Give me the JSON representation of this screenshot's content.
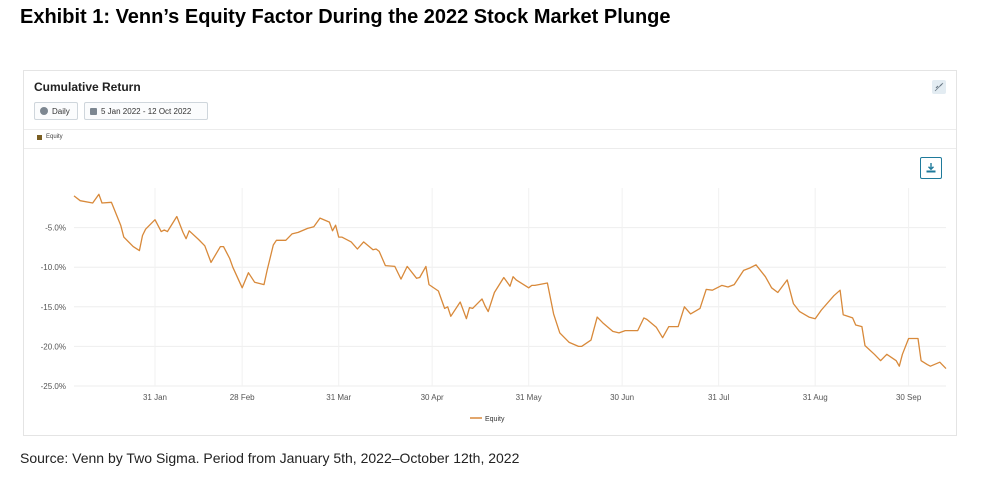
{
  "exhibit_title": "Exhibit 1: Venn’s Equity Factor During the 2022 Stock Market Plunge",
  "panel": {
    "title": "Cumulative Return",
    "frequency_label": "Daily",
    "date_range_label": "5 Jan 2022 - 12 Oct 2022",
    "legend_top_label": "Equity",
    "legend_bottom_label": "Equity"
  },
  "icons": {
    "frequency": "clock-icon",
    "date_range": "calendar-icon",
    "link": "unlink-icon",
    "download": "download-icon"
  },
  "colors": {
    "series": "#d8893a",
    "legend_top_swatch": "#7a5e22",
    "download_accent": "#1f7a9b"
  },
  "source": "Source: Venn by Two Sigma. Period from January 5th, 2022–October 12th, 2022",
  "chart_data": {
    "type": "line",
    "title": "Cumulative Return",
    "xlabel": "",
    "ylabel": "",
    "x_range": [
      "2022-01-05",
      "2022-10-12"
    ],
    "ylim": [
      -25,
      0
    ],
    "y_ticks": [
      -5,
      -10,
      -15,
      -20,
      -25
    ],
    "y_tick_labels": [
      "-5.0%",
      "-10.0%",
      "-15.0%",
      "-20.0%",
      "-25.0%"
    ],
    "x_ticks": [
      "2022-01-31",
      "2022-02-28",
      "2022-03-31",
      "2022-04-30",
      "2022-05-31",
      "2022-06-30",
      "2022-07-31",
      "2022-08-31",
      "2022-09-30"
    ],
    "x_tick_labels": [
      "31 Jan",
      "28 Feb",
      "31 Mar",
      "30 Apr",
      "31 May",
      "30 Jun",
      "31 Jul",
      "31 Aug",
      "30 Sep"
    ],
    "grid": true,
    "legend": "bottom-center",
    "series": [
      {
        "name": "Equity",
        "color": "#d8893a",
        "x": [
          "2022-01-05",
          "2022-01-07",
          "2022-01-11",
          "2022-01-13",
          "2022-01-14",
          "2022-01-17",
          "2022-01-20",
          "2022-01-21",
          "2022-01-24",
          "2022-01-26",
          "2022-01-27",
          "2022-01-28",
          "2022-01-31",
          "2022-02-02",
          "2022-02-03",
          "2022-02-04",
          "2022-02-07",
          "2022-02-09",
          "2022-02-10",
          "2022-02-11",
          "2022-02-14",
          "2022-02-16",
          "2022-02-18",
          "2022-02-21",
          "2022-02-22",
          "2022-02-24",
          "2022-02-25",
          "2022-02-28",
          "2022-03-02",
          "2022-03-04",
          "2022-03-07",
          "2022-03-08",
          "2022-03-10",
          "2022-03-11",
          "2022-03-14",
          "2022-03-16",
          "2022-03-18",
          "2022-03-21",
          "2022-03-23",
          "2022-03-25",
          "2022-03-28",
          "2022-03-29",
          "2022-03-30",
          "2022-03-31",
          "2022-04-01",
          "2022-04-04",
          "2022-04-06",
          "2022-04-08",
          "2022-04-11",
          "2022-04-12",
          "2022-04-13",
          "2022-04-15",
          "2022-04-18",
          "2022-04-20",
          "2022-04-22",
          "2022-04-25",
          "2022-04-26",
          "2022-04-28",
          "2022-04-29",
          "2022-05-02",
          "2022-05-04",
          "2022-05-05",
          "2022-05-06",
          "2022-05-09",
          "2022-05-11",
          "2022-05-12",
          "2022-05-13",
          "2022-05-16",
          "2022-05-17",
          "2022-05-18",
          "2022-05-20",
          "2022-05-23",
          "2022-05-25",
          "2022-05-26",
          "2022-05-27",
          "2022-05-31",
          "2022-06-01",
          "2022-06-02",
          "2022-06-06",
          "2022-06-08",
          "2022-06-10",
          "2022-06-13",
          "2022-06-16",
          "2022-06-17",
          "2022-06-20",
          "2022-06-22",
          "2022-06-24",
          "2022-06-27",
          "2022-06-29",
          "2022-07-01",
          "2022-07-05",
          "2022-07-07",
          "2022-07-08",
          "2022-07-11",
          "2022-07-13",
          "2022-07-15",
          "2022-07-18",
          "2022-07-20",
          "2022-07-22",
          "2022-07-25",
          "2022-07-27",
          "2022-07-29",
          "2022-08-01",
          "2022-08-03",
          "2022-08-05",
          "2022-08-08",
          "2022-08-10",
          "2022-08-12",
          "2022-08-15",
          "2022-08-17",
          "2022-08-19",
          "2022-08-22",
          "2022-08-24",
          "2022-08-26",
          "2022-08-29",
          "2022-08-31",
          "2022-09-02",
          "2022-09-06",
          "2022-09-08",
          "2022-09-09",
          "2022-09-12",
          "2022-09-13",
          "2022-09-15",
          "2022-09-16",
          "2022-09-19",
          "2022-09-21",
          "2022-09-23",
          "2022-09-26",
          "2022-09-27",
          "2022-09-28",
          "2022-09-30",
          "2022-10-03",
          "2022-10-04",
          "2022-10-06",
          "2022-10-07",
          "2022-10-10",
          "2022-10-12"
        ],
        "y": [
          -1.0,
          -1.6,
          -1.9,
          -0.8,
          -1.9,
          -1.8,
          -4.7,
          -6.2,
          -7.4,
          -7.9,
          -6.0,
          -5.2,
          -4.0,
          -5.5,
          -5.3,
          -5.5,
          -3.6,
          -5.6,
          -6.4,
          -5.4,
          -6.5,
          -7.3,
          -9.4,
          -7.4,
          -7.4,
          -8.9,
          -10.0,
          -12.6,
          -10.7,
          -11.9,
          -12.2,
          -10.4,
          -7.2,
          -6.6,
          -6.6,
          -5.8,
          -5.6,
          -5.1,
          -4.9,
          -3.8,
          -4.3,
          -5.4,
          -4.7,
          -6.2,
          -6.2,
          -6.8,
          -7.7,
          -6.8,
          -7.8,
          -7.7,
          -8.0,
          -9.8,
          -9.9,
          -11.5,
          -9.9,
          -11.4,
          -11.3,
          -9.9,
          -12.2,
          -13.0,
          -15.2,
          -15.0,
          -16.2,
          -14.4,
          -16.5,
          -15.1,
          -15.2,
          -14.0,
          -14.9,
          -15.6,
          -13.2,
          -11.3,
          -12.4,
          -11.2,
          -11.6,
          -12.6,
          -12.3,
          -12.3,
          -12.0,
          -15.9,
          -18.3,
          -19.5,
          -20.0,
          -20.0,
          -19.2,
          -16.3,
          -17.1,
          -18.1,
          -18.3,
          -18.0,
          -18.0,
          -16.4,
          -16.6,
          -17.6,
          -18.9,
          -17.5,
          -17.5,
          -15.0,
          -15.9,
          -15.2,
          -12.8,
          -12.9,
          -12.3,
          -12.5,
          -12.2,
          -10.4,
          -10.1,
          -9.7,
          -11.2,
          -12.6,
          -13.2,
          -11.6,
          -14.6,
          -15.6,
          -16.3,
          -16.5,
          -15.4,
          -13.6,
          -12.9,
          -16.0,
          -16.4,
          -17.3,
          -17.5,
          -19.9,
          -21.0,
          -21.8,
          -21.0,
          -21.8,
          -22.5,
          -21.0,
          -19.0,
          -19.0,
          -21.8,
          -22.3,
          -22.5,
          -22.0,
          -22.8
        ]
      }
    ]
  }
}
